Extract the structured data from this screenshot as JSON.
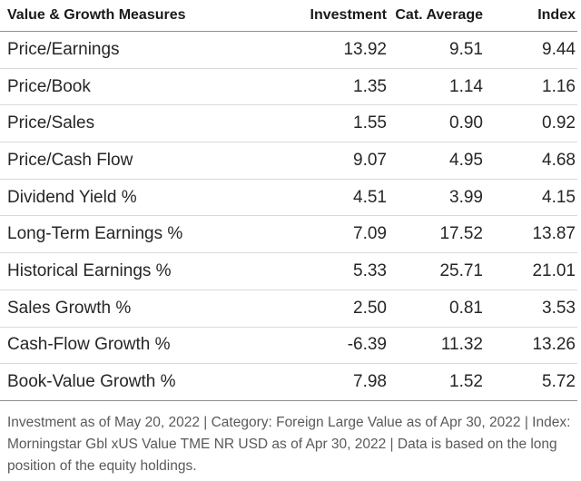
{
  "table": {
    "headers": {
      "measure": "Value & Growth Measures",
      "investment": "Investment",
      "category_average": "Cat. Average",
      "index": "Index"
    },
    "rows": [
      {
        "measure": "Price/Earnings",
        "investment": "13.92",
        "category_average": "9.51",
        "index": "9.44"
      },
      {
        "measure": "Price/Book",
        "investment": "1.35",
        "category_average": "1.14",
        "index": "1.16"
      },
      {
        "measure": "Price/Sales",
        "investment": "1.55",
        "category_average": "0.90",
        "index": "0.92"
      },
      {
        "measure": "Price/Cash Flow",
        "investment": "9.07",
        "category_average": "4.95",
        "index": "4.68"
      },
      {
        "measure": "Dividend Yield %",
        "investment": "4.51",
        "category_average": "3.99",
        "index": "4.15"
      },
      {
        "measure": "Long-Term Earnings %",
        "investment": "7.09",
        "category_average": "17.52",
        "index": "13.87"
      },
      {
        "measure": "Historical Earnings %",
        "investment": "5.33",
        "category_average": "25.71",
        "index": "21.01"
      },
      {
        "measure": "Sales Growth %",
        "investment": "2.50",
        "category_average": "0.81",
        "index": "3.53"
      },
      {
        "measure": "Cash-Flow Growth %",
        "investment": "-6.39",
        "category_average": "11.32",
        "index": "13.26"
      },
      {
        "measure": "Book-Value Growth %",
        "investment": "7.98",
        "category_average": "1.52",
        "index": "5.72"
      }
    ]
  },
  "footnote": "Investment as of May 20, 2022 | Category: Foreign Large Value as of Apr 30, 2022 | Index: Morningstar Gbl xUS Value TME NR USD as of Apr 30, 2022 | Data is based on the long position of the equity holdings."
}
